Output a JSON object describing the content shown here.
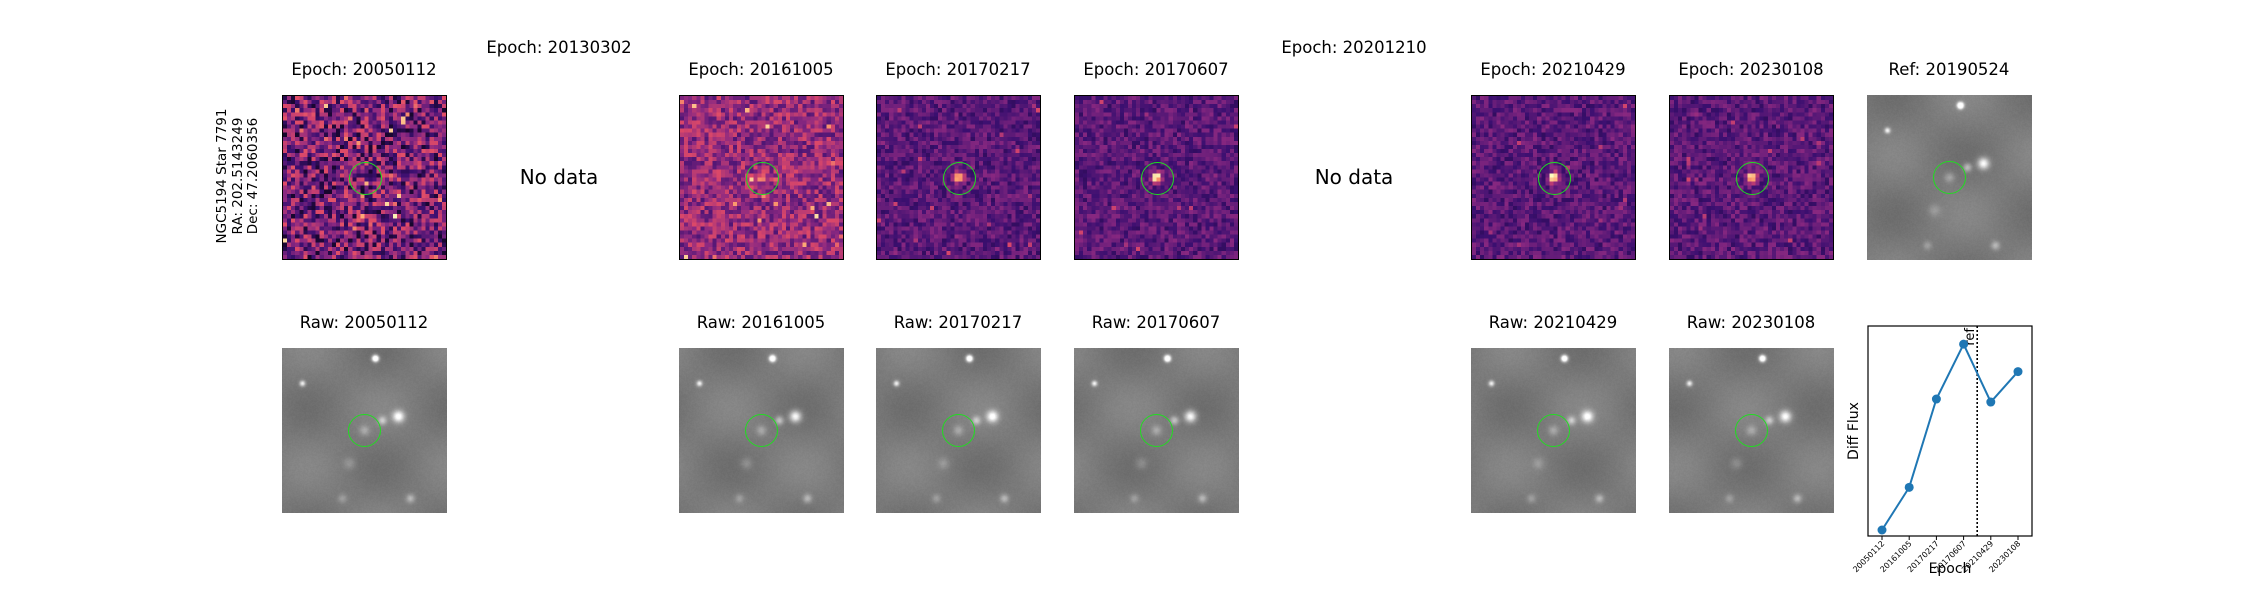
{
  "star_label": [
    "NGC5194 Star 7791",
    "RA: 202.5143249",
    "Dec: 47.2060356"
  ],
  "no_data_text": "No data",
  "diff_panels": [
    {
      "title": "Epoch: 20050112",
      "has_data": true,
      "style": "noise",
      "seed": 11
    },
    {
      "title": "Epoch: 20130302",
      "has_data": false
    },
    {
      "title": "Epoch: 20161005",
      "has_data": true,
      "style": "medium",
      "seed": 23
    },
    {
      "title": "Epoch: 20170217",
      "has_data": true,
      "style": "bright",
      "seed": 37
    },
    {
      "title": "Epoch: 20170607",
      "has_data": true,
      "style": "bright",
      "seed": 41
    },
    {
      "title": "Epoch: 20201210",
      "has_data": false
    },
    {
      "title": "Epoch: 20210429",
      "has_data": true,
      "style": "bright",
      "seed": 53
    },
    {
      "title": "Epoch: 20230108",
      "has_data": true,
      "style": "bright",
      "seed": 67
    },
    {
      "title": "Ref: 20190524",
      "has_data": true,
      "style": "raw",
      "seed": 79
    }
  ],
  "raw_panels": [
    {
      "title": "Raw: 20050112",
      "seed": 101
    },
    {
      "title": "Raw: 20161005",
      "seed": 103
    },
    {
      "title": "Raw: 20170217",
      "seed": 107
    },
    {
      "title": "Raw: 20170607",
      "seed": 109
    },
    {
      "title": "Raw: 20210429",
      "seed": 113
    },
    {
      "title": "Raw: 20230108",
      "seed": 127
    }
  ],
  "colors": {
    "marker": "#21dd21",
    "line": "#1f77b4",
    "ref_line": "#000000"
  },
  "chart_data": {
    "type": "line",
    "x": [
      "20050112",
      "20161005",
      "20170217",
      "20170607",
      "20210429",
      "20230108"
    ],
    "y": [
      0.0,
      0.14,
      0.43,
      0.61,
      0.42,
      0.52
    ],
    "xlabel": "Epoch",
    "ylabel": "Diff Flux",
    "ref_label": "ref",
    "ref_x": 3.5,
    "y_ticks": "none"
  }
}
